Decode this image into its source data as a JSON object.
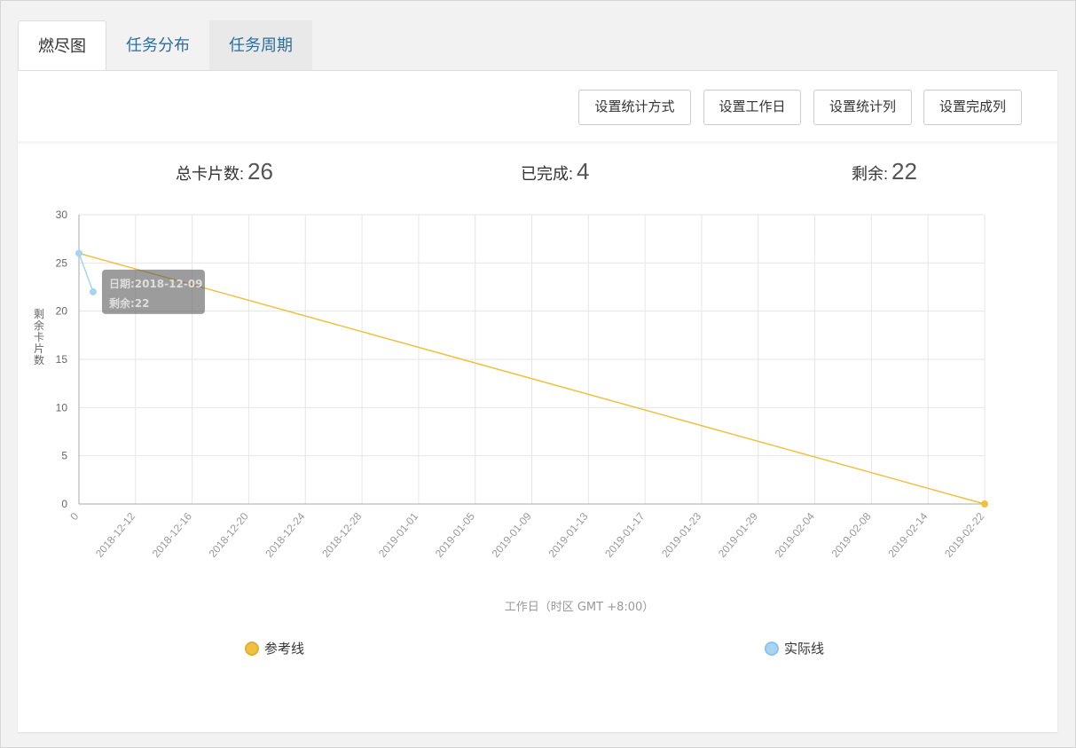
{
  "tabs": [
    {
      "label": "燃尽图"
    },
    {
      "label": "任务分布"
    },
    {
      "label": "任务周期"
    }
  ],
  "toolbar": {
    "stat_method": "设置统计方式",
    "workdays": "设置工作日",
    "stat_columns": "设置统计列",
    "done_columns": "设置完成列"
  },
  "stats": {
    "total_label": "总卡片数:",
    "total_value": "26",
    "done_label": "已完成:",
    "done_value": "4",
    "remaining_label": "剩余:",
    "remaining_value": "22"
  },
  "tooltip": {
    "date": "日期:2018-12-09",
    "remaining": "剩余:22"
  },
  "legend": {
    "reference": "参考线",
    "actual": "实际线"
  },
  "colors": {
    "reference": "#f0c040",
    "actual": "#a8d4f4",
    "tab_link": "#2a6f9e"
  },
  "chart_data": {
    "type": "line",
    "xlabel": "工作日（时区 GMT +8:00）",
    "ylabel": "剩余卡片数",
    "ylim": [
      0,
      30
    ],
    "yticks": [
      0,
      5,
      10,
      15,
      20,
      25,
      30
    ],
    "x_ticks": [
      "0",
      "2018-12-12",
      "2018-12-16",
      "2018-12-20",
      "2018-12-24",
      "2018-12-28",
      "2019-01-01",
      "2019-01-05",
      "2019-01-09",
      "2019-01-13",
      "2019-01-17",
      "2019-01-23",
      "2019-01-29",
      "2019-02-04",
      "2019-02-08",
      "2019-02-14",
      "2019-02-22"
    ],
    "grid": true,
    "legend_position": "bottom",
    "series": [
      {
        "name": "参考线",
        "points": [
          {
            "x": "0",
            "y": 26
          },
          {
            "x": "2019-02-22",
            "y": 0
          }
        ]
      },
      {
        "name": "实际线",
        "points": [
          {
            "x": "0",
            "y": 26
          },
          {
            "x": "2018-12-09",
            "y": 22
          }
        ]
      }
    ]
  }
}
